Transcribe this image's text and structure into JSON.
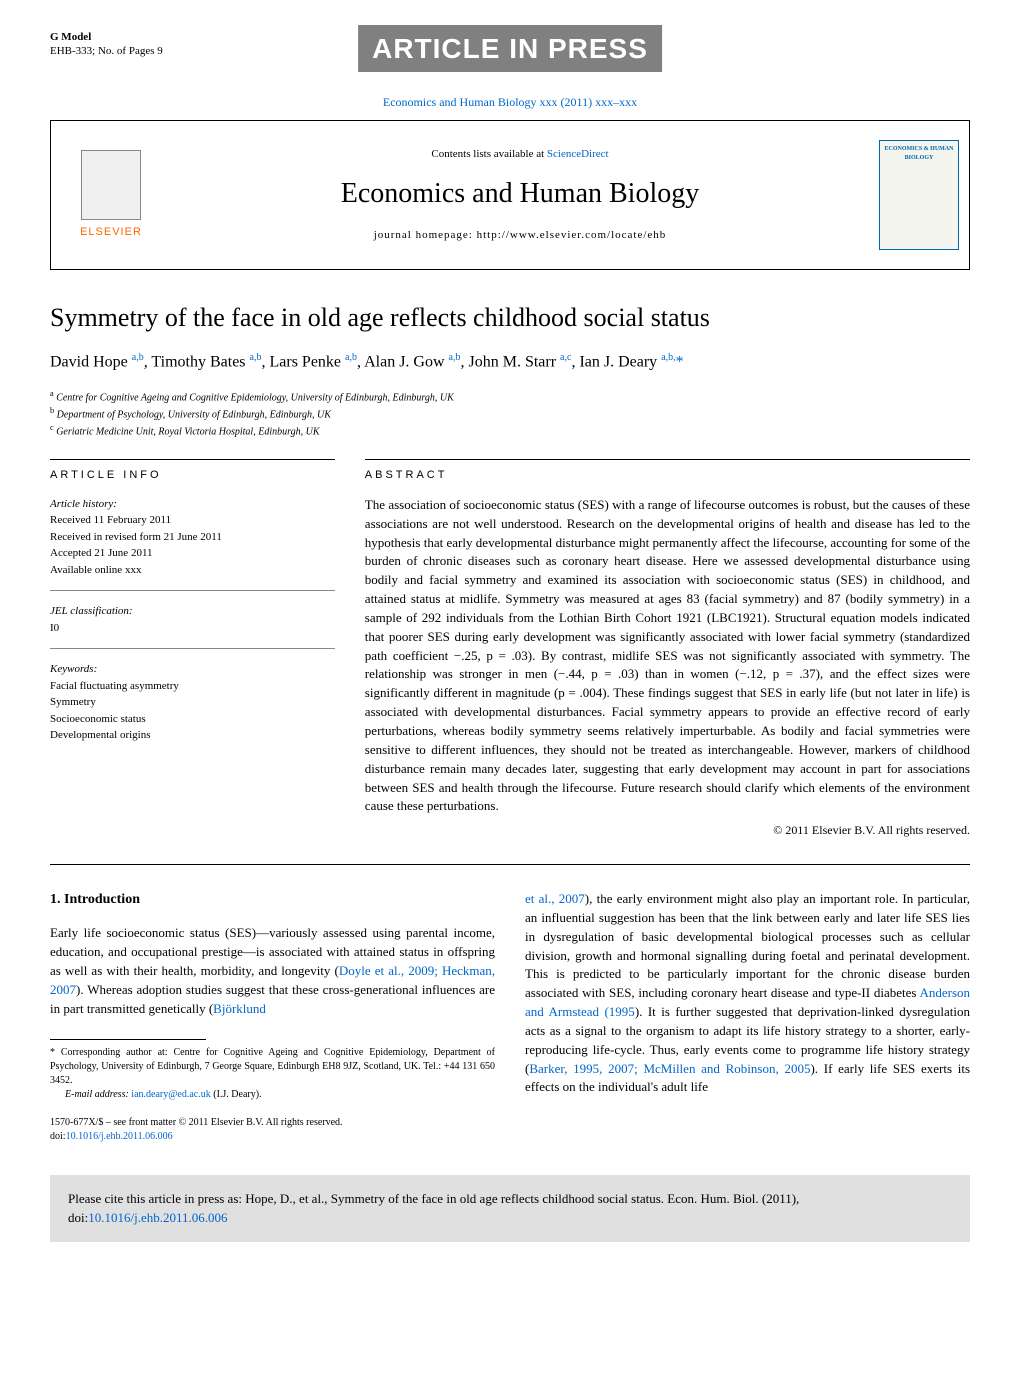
{
  "header": {
    "gmodel": "G Model",
    "ref": "EHB-333; No. of Pages 9",
    "banner": "ARTICLE IN PRESS",
    "journal_link": "Economics and Human Biology xxx (2011) xxx–xxx",
    "contents": "Contents lists available at ",
    "contents_link": "ScienceDirect",
    "journal_title": "Economics and Human Biology",
    "homepage": "journal homepage: http://www.elsevier.com/locate/ehb",
    "elsevier": "ELSEVIER",
    "cover_text": "ECONOMICS & HUMAN BIOLOGY"
  },
  "article": {
    "title": "Symmetry of the face in old age reflects childhood social status",
    "authors_html": "David Hope <sup>a,b</sup>, Timothy Bates <sup>a,b</sup>, Lars Penke <sup>a,b</sup>, Alan J. Gow <sup>a,b</sup>, John M. Starr <sup>a,c</sup>, Ian J. Deary <sup>a,b,</sup><span class='corr'>*</span>",
    "affiliations": [
      {
        "sup": "a",
        "text": "Centre for Cognitive Ageing and Cognitive Epidemiology, University of Edinburgh, Edinburgh, UK"
      },
      {
        "sup": "b",
        "text": "Department of Psychology, University of Edinburgh, Edinburgh, UK"
      },
      {
        "sup": "c",
        "text": "Geriatric Medicine Unit, Royal Victoria Hospital, Edinburgh, UK"
      }
    ]
  },
  "info": {
    "header": "ARTICLE INFO",
    "history_label": "Article history:",
    "history": [
      "Received 11 February 2011",
      "Received in revised form 21 June 2011",
      "Accepted 21 June 2011",
      "Available online xxx"
    ],
    "jel_label": "JEL classification:",
    "jel": "I0",
    "keywords_label": "Keywords:",
    "keywords": [
      "Facial fluctuating asymmetry",
      "Symmetry",
      "Socioeconomic status",
      "Developmental origins"
    ]
  },
  "abstract": {
    "header": "ABSTRACT",
    "text": "The association of socioeconomic status (SES) with a range of lifecourse outcomes is robust, but the causes of these associations are not well understood. Research on the developmental origins of health and disease has led to the hypothesis that early developmental disturbance might permanently affect the lifecourse, accounting for some of the burden of chronic diseases such as coronary heart disease. Here we assessed developmental disturbance using bodily and facial symmetry and examined its association with socioeconomic status (SES) in childhood, and attained status at midlife. Symmetry was measured at ages 83 (facial symmetry) and 87 (bodily symmetry) in a sample of 292 individuals from the Lothian Birth Cohort 1921 (LBC1921). Structural equation models indicated that poorer SES during early development was significantly associated with lower facial symmetry (standardized path coefficient −.25, p = .03). By contrast, midlife SES was not significantly associated with symmetry. The relationship was stronger in men (−.44, p = .03) than in women (−.12, p = .37), and the effect sizes were significantly different in magnitude (p = .004). These findings suggest that SES in early life (but not later in life) is associated with developmental disturbances. Facial symmetry appears to provide an effective record of early perturbations, whereas bodily symmetry seems relatively imperturbable. As bodily and facial symmetries were sensitive to different influences, they should not be treated as interchangeable. However, markers of childhood disturbance remain many decades later, suggesting that early development may account in part for associations between SES and health through the lifecourse. Future research should clarify which elements of the environment cause these perturbations.",
    "copyright": "© 2011 Elsevier B.V. All rights reserved."
  },
  "body": {
    "intro_heading": "1. Introduction",
    "left_p1": "Early life socioeconomic status (SES)—variously assessed using parental income, education, and occupational prestige—is associated with attained status in offspring as well as with their health, morbidity, and longevity (",
    "left_p1_cite": "Doyle et al., 2009; Heckman, 2007",
    "left_p1_end": "). Whereas adoption studies suggest that these cross-generational influences are in part transmitted genetically (",
    "left_p1_cite2": "Björklund",
    "right_p1_cite": "et al., 2007",
    "right_p1": "), the early environment might also play an important role. In particular, an influential suggestion has been that the link between early and later life SES lies in dysregulation of basic developmental biological processes such as cellular division, growth and hormonal signalling during foetal and perinatal development. This is predicted to be particularly important for the chronic disease burden associated with SES, including coronary heart disease and type-II diabetes ",
    "right_p1_cite2": "Anderson and Armstead (1995",
    "right_p1_mid": "). It is further suggested that deprivation-linked dysregulation acts as a signal to the organism to adapt its life history strategy to a shorter, early-reproducing life-cycle. Thus, early events come to programme life history strategy (",
    "right_p1_cite3": "Barker, 1995, 2007; McMillen and Robinson, 2005",
    "right_p1_end": "). If early life SES exerts its effects on the individual's adult life"
  },
  "footnote": {
    "corr": "* Corresponding author at: Centre for Cognitive Ageing and Cognitive Epidemiology, Department of Psychology, University of Edinburgh, 7 George Square, Edinburgh EH8 9JZ, Scotland, UK. Tel.: +44 131 650 3452.",
    "email_label": "E-mail address: ",
    "email": "ian.deary@ed.ac.uk",
    "email_name": " (I.J. Deary).",
    "issn": "1570-677X/$ – see front matter © 2011 Elsevier B.V. All rights reserved.",
    "doi_label": "doi:",
    "doi": "10.1016/j.ehb.2011.06.006"
  },
  "citebox": {
    "text": "Please cite this article in press as: Hope, D., et al., Symmetry of the face in old age reflects childhood social status. Econ. Hum. Biol. (2011), doi:",
    "doi": "10.1016/j.ehb.2011.06.006"
  },
  "colors": {
    "link": "#0066cc",
    "banner_bg": "#808080",
    "elsevier_orange": "#ff6600",
    "citebox_bg": "#e0e0e0"
  }
}
